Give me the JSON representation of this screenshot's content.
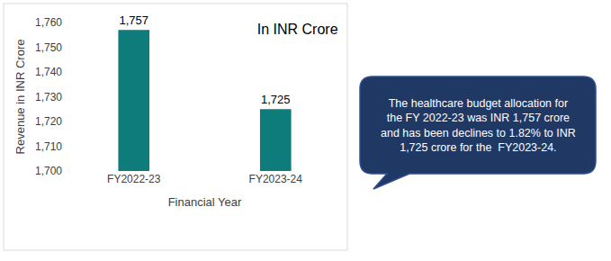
{
  "chart_data": {
    "type": "bar",
    "title": "In INR Crore",
    "x_label": "Financial Year",
    "y_label": "Revenue in INR Crore",
    "categories": [
      "FY2022-23",
      "FY2023-24"
    ],
    "values": [
      1757,
      1725
    ],
    "value_labels": [
      "1,757",
      "1,725"
    ],
    "data_labels": true,
    "color": "#0E7C7B",
    "ylim": [
      1700,
      1760
    ],
    "yticks": [
      {
        "value": 1700,
        "label": "1,700"
      },
      {
        "value": 1710,
        "label": "1,710"
      },
      {
        "value": 1720,
        "label": "1,720"
      },
      {
        "value": 1730,
        "label": "1,730"
      },
      {
        "value": 1740,
        "label": "1,740"
      },
      {
        "value": 1750,
        "label": "1,750"
      },
      {
        "value": 1760,
        "label": "1,760"
      }
    ],
    "grid": false,
    "annotation": "The healthcare budget allocation for the FY 2022-23 was INR 1,757 crore and has been declines to 1.82% to INR 1,725 crore for the  FY2023-24."
  }
}
